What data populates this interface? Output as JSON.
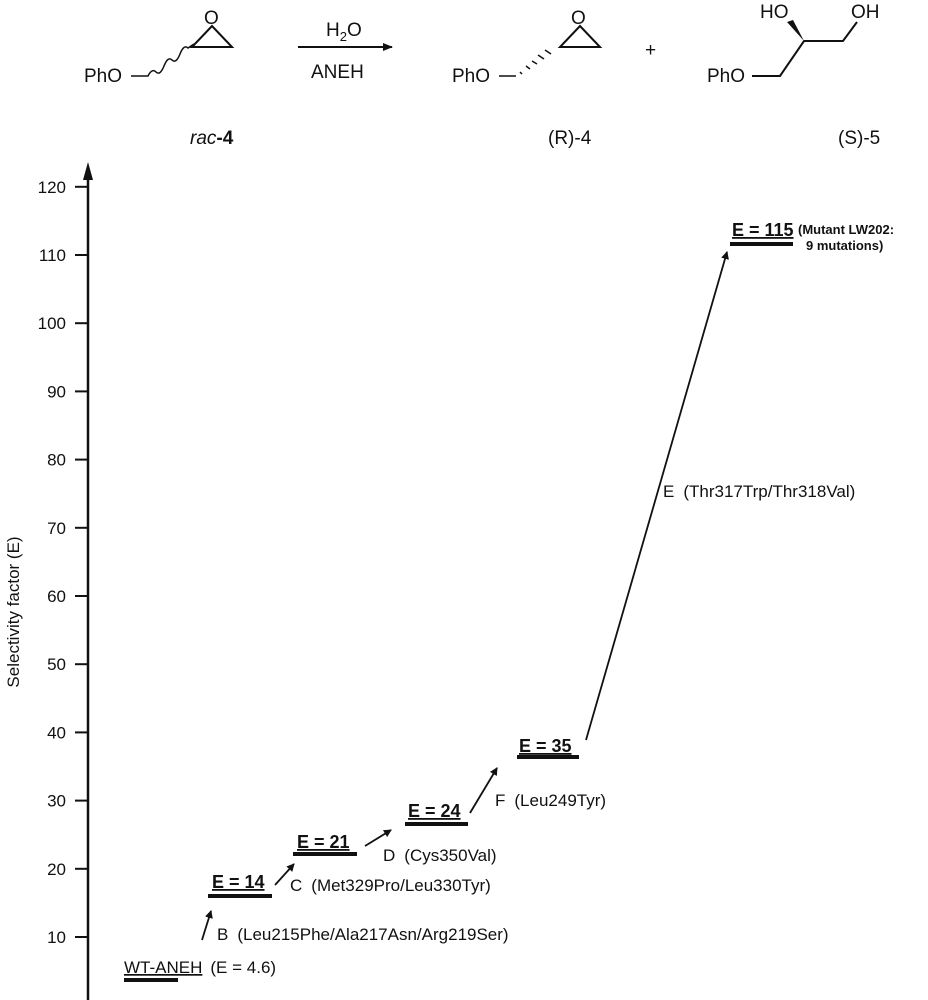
{
  "scheme": {
    "substrate_label_prefix": "rac",
    "substrate_label_num": "-4",
    "reagent_top": "H",
    "reagent_top_sub": "2",
    "reagent_top_end": "O",
    "catalyst": "ANEH",
    "product1_label": "(R)-4",
    "product2_label": "(S)-5",
    "plus": "+",
    "pho": "PhO",
    "o": "O",
    "ho": "HO",
    "oh": "OH"
  },
  "chart_data": {
    "type": "step",
    "ylabel": "Selectivity factor (E)",
    "ylim": [
      0,
      120
    ],
    "yticks": [
      "10",
      "20",
      "30",
      "40",
      "50",
      "60",
      "70",
      "80",
      "90",
      "100",
      "110",
      "120"
    ],
    "levels": [
      {
        "name": "WT-ANEH",
        "label": "WT-ANEH",
        "value_label": "(E = 4.6)",
        "E": 4.6
      },
      {
        "name": "B",
        "label": "E = 14",
        "E": 14
      },
      {
        "name": "C",
        "label": "E = 21",
        "E": 21
      },
      {
        "name": "D",
        "label": "E = 24",
        "E": 24
      },
      {
        "name": "F",
        "label": "E = 35",
        "E": 35
      },
      {
        "name": "E",
        "label": "E = 115",
        "E": 115
      }
    ],
    "steps": [
      {
        "letter": "B",
        "mutations": "(Leu215Phe/Ala217Asn/Arg219Ser)"
      },
      {
        "letter": "C",
        "mutations": "(Met329Pro/Leu330Tyr)"
      },
      {
        "letter": "D",
        "mutations": "(Cys350Val)"
      },
      {
        "letter": "F",
        "mutations": "(Leu249Tyr)"
      },
      {
        "letter": "E",
        "mutations": "(Thr317Trp/Thr318Val)"
      }
    ],
    "final_note_line1": "(Mutant LW202:",
    "final_note_line2": "9 mutations)"
  }
}
